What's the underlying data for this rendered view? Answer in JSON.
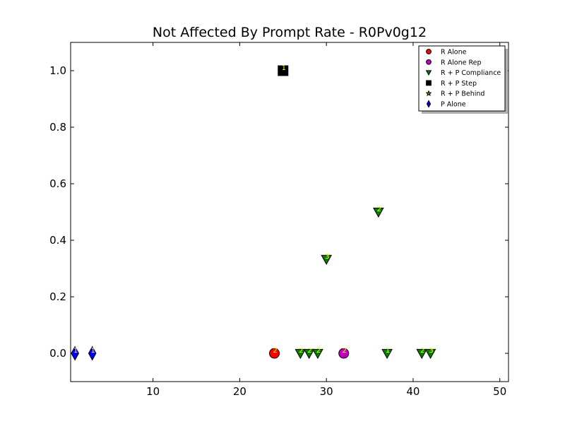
{
  "chart_data": {
    "type": "scatter",
    "title": "Not Affected By Prompt Rate - R0Pv0g12",
    "xlabel": "",
    "ylabel": "",
    "xlim": [
      0.5,
      51
    ],
    "ylim": [
      -0.1,
      1.1
    ],
    "xticks": [
      "10",
      "20",
      "30",
      "40",
      "50"
    ],
    "xtick_values": [
      10,
      20,
      30,
      40,
      50
    ],
    "yticks": [
      "0.0",
      "0.2",
      "0.4",
      "0.6",
      "0.8",
      "1.0"
    ],
    "ytick_values": [
      0.0,
      0.2,
      0.4,
      0.6,
      0.8,
      1.0
    ],
    "grid": false,
    "legend_position": "top-right",
    "series": [
      {
        "name": "R Alone",
        "marker": "circle",
        "color": "#ff0000",
        "label_color": "#ffff00",
        "points": [
          {
            "x": 24,
            "y": 0.0,
            "label": "2"
          }
        ]
      },
      {
        "name": "R Alone Rep",
        "marker": "circle",
        "color": "#bf00bf",
        "label_color": "#ffff00",
        "points": [
          {
            "x": 32,
            "y": 0.0,
            "label": "2"
          }
        ]
      },
      {
        "name": "R + P Compliance",
        "marker": "triangle-down",
        "color": "#008000",
        "label_color": "#ffff00",
        "points": [
          {
            "x": 27,
            "y": 0.0,
            "label": "2"
          },
          {
            "x": 28,
            "y": 0.0,
            "label": "2"
          },
          {
            "x": 29,
            "y": 0.0,
            "label": "2"
          },
          {
            "x": 30,
            "y": 0.333,
            "label": "3"
          },
          {
            "x": 36,
            "y": 0.5,
            "label": "2"
          },
          {
            "x": 37,
            "y": 0.0,
            "label": "1"
          },
          {
            "x": 41,
            "y": 0.0,
            "label": "2"
          },
          {
            "x": 42,
            "y": 0.0,
            "label": "3"
          }
        ]
      },
      {
        "name": "R + P Step",
        "marker": "square",
        "color": "#000000",
        "label_color": "#ffff00",
        "points": [
          {
            "x": 25,
            "y": 1.0,
            "label": "1"
          }
        ]
      },
      {
        "name": "R + P Behind",
        "marker": "star",
        "color": "#808000",
        "label_color": "#ffff00",
        "points": []
      },
      {
        "name": "P Alone",
        "marker": "diamond",
        "color": "#0000ff",
        "label_color": "#ffff00",
        "points": [
          {
            "x": 1,
            "y": 0.0,
            "label": "1"
          },
          {
            "x": 3,
            "y": 0.0,
            "label": "1"
          }
        ]
      }
    ]
  }
}
